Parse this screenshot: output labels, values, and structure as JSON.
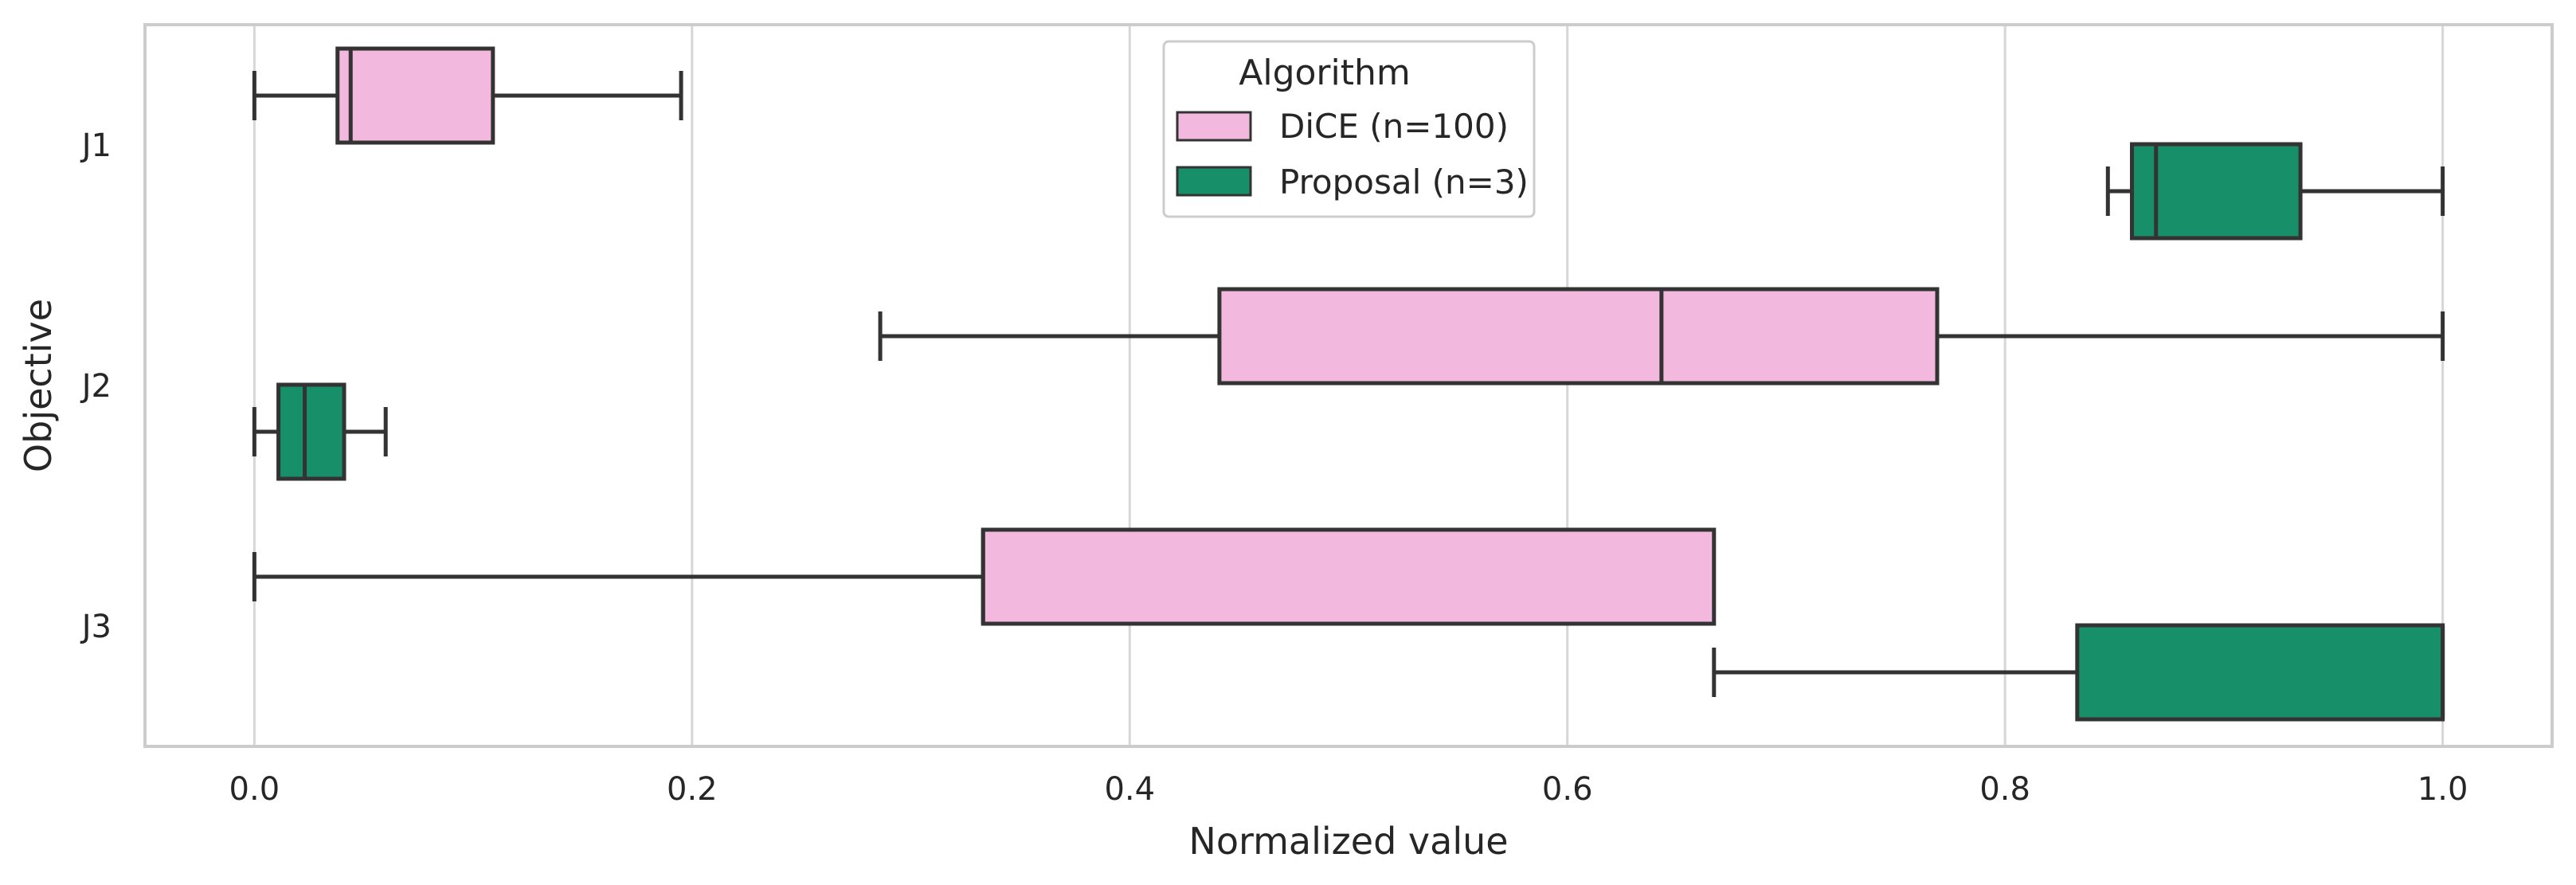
{
  "chart_data": {
    "type": "boxplot",
    "orientation": "horizontal",
    "xlabel": "Normalized value",
    "ylabel": "Objective",
    "xlim": [
      -0.05,
      1.05
    ],
    "xticks": [
      0.0,
      0.2,
      0.4,
      0.6,
      0.8,
      1.0
    ],
    "xtick_labels": [
      "0.0",
      "0.2",
      "0.4",
      "0.6",
      "0.8",
      "1.0"
    ],
    "grid": "vertical",
    "categories": [
      "J1",
      "J2",
      "J3"
    ],
    "legend": {
      "title": "Algorithm",
      "placement": "top-center",
      "entries": [
        "DiCE (n=100)",
        "Proposal (n=3)"
      ]
    },
    "series": [
      {
        "name": "DiCE (n=100)",
        "color": "#f2b8de",
        "boxes": [
          {
            "category": "J1",
            "whisker_low": 0.0,
            "q1": 0.038,
            "median": 0.044,
            "q3": 0.109,
            "whisker_high": 0.195
          },
          {
            "category": "J2",
            "whisker_low": 0.286,
            "q1": 0.441,
            "median": 0.643,
            "q3": 0.769,
            "whisker_high": 1.0
          },
          {
            "category": "J3",
            "whisker_low": 0.0,
            "q1": 0.333,
            "median": 0.333,
            "q3": 0.667,
            "whisker_high": 0.667
          }
        ]
      },
      {
        "name": "Proposal (n=3)",
        "color": "#178f69",
        "boxes": [
          {
            "category": "J1",
            "whisker_low": 0.847,
            "q1": 0.858,
            "median": 0.869,
            "q3": 0.935,
            "whisker_high": 1.0
          },
          {
            "category": "J2",
            "whisker_low": 0.0,
            "q1": 0.011,
            "median": 0.023,
            "q3": 0.041,
            "whisker_high": 0.06
          },
          {
            "category": "J3",
            "whisker_low": 0.667,
            "q1": 0.833,
            "median": 1.0,
            "q3": 1.0,
            "whisker_high": 1.0
          }
        ]
      }
    ]
  }
}
